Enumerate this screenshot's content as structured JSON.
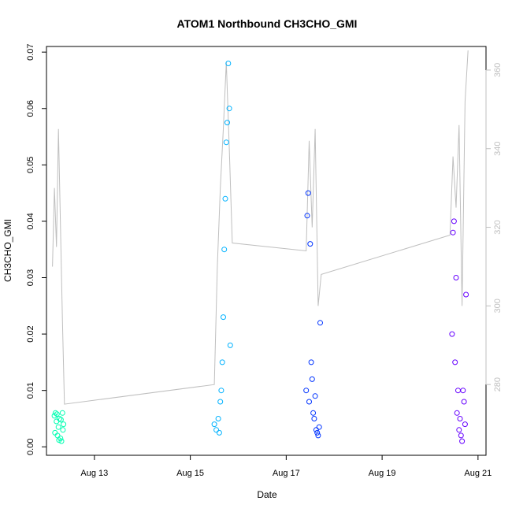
{
  "chart_data": {
    "type": "scatter",
    "title": "ATOM1 Northbound CH3CHO_GMI",
    "xlabel": "Date",
    "ylabel": "CH3CHO_GMI",
    "xlim": [
      "2016-08-12T00:00",
      "2016-08-21T04:00"
    ],
    "ylim": [
      -0.0015,
      0.071
    ],
    "y_ticks": [
      0.0,
      0.01,
      0.02,
      0.03,
      0.04,
      0.05,
      0.06,
      0.07
    ],
    "y_tick_labels": [
      "0.00",
      "0.01",
      "0.02",
      "0.03",
      "0.04",
      "0.05",
      "0.06",
      "0.07"
    ],
    "x_ticks": [
      "2016-08-13",
      "2016-08-15",
      "2016-08-17",
      "2016-08-19",
      "2016-08-21"
    ],
    "x_tick_labels": [
      "Aug 13",
      "Aug 15",
      "Aug 17",
      "Aug 19",
      "Aug 21"
    ],
    "y2lim": [
      262,
      366
    ],
    "y2_ticks": [
      280,
      300,
      320,
      340,
      360
    ],
    "y2_tick_labels": [
      "280",
      "300",
      "320",
      "340",
      "360"
    ],
    "grid": false,
    "colors": {
      "flight1": "#00ffb2",
      "flight2": "#00b2ff",
      "flight3": "#0033ff",
      "flight4": "#6600ff",
      "secondary_line": "#bfbfbf",
      "axis": "#000000"
    },
    "series": [
      {
        "color_key": "flight1",
        "x": [
          "2016-08-12T04:00",
          "2016-08-12T04:30",
          "2016-08-12T05:00",
          "2016-08-12T05:30",
          "2016-08-12T06:00",
          "2016-08-12T06:30",
          "2016-08-12T07:00",
          "2016-08-12T07:30",
          "2016-08-12T08:00",
          "2016-08-12T08:30",
          "2016-08-12T04:15",
          "2016-08-12T05:15",
          "2016-08-12T06:15",
          "2016-08-12T07:15",
          "2016-08-12T08:15"
        ],
        "y": [
          0.0055,
          0.006,
          0.0045,
          0.002,
          0.0035,
          0.005,
          0.0015,
          0.001,
          0.006,
          0.004,
          0.0025,
          0.0058,
          0.0012,
          0.0048,
          0.003
        ]
      },
      {
        "color_key": "flight2",
        "x": [
          "2016-08-15T12:00",
          "2016-08-15T13:00",
          "2016-08-15T14:00",
          "2016-08-15T15:00",
          "2016-08-15T16:00",
          "2016-08-15T16:30",
          "2016-08-15T17:00",
          "2016-08-15T17:30",
          "2016-08-15T18:00",
          "2016-08-15T18:30",
          "2016-08-15T19:00",
          "2016-08-15T19:30",
          "2016-08-15T20:00",
          "2016-08-15T14:30",
          "2016-08-15T15:30"
        ],
        "y": [
          0.004,
          0.003,
          0.005,
          0.008,
          0.015,
          0.023,
          0.035,
          0.044,
          0.054,
          0.0575,
          0.068,
          0.06,
          0.018,
          0.0025,
          0.01
        ]
      },
      {
        "color_key": "flight3",
        "x": [
          "2016-08-17T10:00",
          "2016-08-17T11:00",
          "2016-08-17T12:00",
          "2016-08-17T13:00",
          "2016-08-17T14:00",
          "2016-08-17T15:00",
          "2016-08-17T16:00",
          "2016-08-17T17:00",
          "2016-08-17T10:30",
          "2016-08-17T11:30",
          "2016-08-17T12:30",
          "2016-08-17T13:30",
          "2016-08-17T14:30",
          "2016-08-17T16:30",
          "2016-08-17T15:30"
        ],
        "y": [
          0.01,
          0.045,
          0.036,
          0.012,
          0.005,
          0.003,
          0.002,
          0.022,
          0.041,
          0.008,
          0.015,
          0.006,
          0.009,
          0.0035,
          0.0025
        ]
      },
      {
        "color_key": "flight4",
        "x": [
          "2016-08-20T11:00",
          "2016-08-20T12:00",
          "2016-08-20T13:00",
          "2016-08-20T14:00",
          "2016-08-20T15:00",
          "2016-08-20T16:00",
          "2016-08-20T17:00",
          "2016-08-20T18:00",
          "2016-08-20T11:30",
          "2016-08-20T12:30",
          "2016-08-20T13:30",
          "2016-08-20T14:30",
          "2016-08-20T15:30",
          "2016-08-20T16:30",
          "2016-08-20T17:30"
        ],
        "y": [
          0.02,
          0.04,
          0.03,
          0.01,
          0.005,
          0.001,
          0.008,
          0.027,
          0.038,
          0.015,
          0.006,
          0.003,
          0.002,
          0.01,
          0.004
        ]
      }
    ],
    "secondary_line": {
      "x": [
        "2016-08-12T03:00",
        "2016-08-12T04:00",
        "2016-08-12T05:00",
        "2016-08-12T06:00",
        "2016-08-12T07:00",
        "2016-08-12T08:00",
        "2016-08-12T09:00",
        "2016-08-15T12:00",
        "2016-08-15T13:30",
        "2016-08-15T15:00",
        "2016-08-15T16:30",
        "2016-08-15T18:00",
        "2016-08-15T19:30",
        "2016-08-15T21:00",
        "2016-08-17T10:00",
        "2016-08-17T11:30",
        "2016-08-17T13:00",
        "2016-08-17T14:30",
        "2016-08-17T16:00",
        "2016-08-17T17:30",
        "2016-08-20T10:00",
        "2016-08-20T11:30",
        "2016-08-20T13:00",
        "2016-08-20T14:30",
        "2016-08-20T16:00",
        "2016-08-20T17:30",
        "2016-08-20T19:00"
      ],
      "y": [
        310,
        330,
        315,
        345,
        320,
        296,
        275,
        280,
        310,
        330,
        345,
        362,
        340,
        316,
        314,
        342,
        320,
        345,
        300,
        308,
        318,
        338,
        325,
        346,
        300,
        352,
        365
      ]
    }
  }
}
